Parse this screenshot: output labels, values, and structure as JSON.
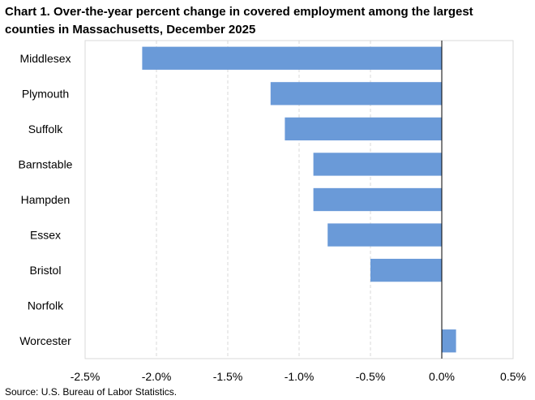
{
  "chart_data": {
    "type": "bar",
    "orientation": "horizontal",
    "title": "Chart 1. Over-the-year percent change in covered employment among the largest counties in Massachusetts, December 2025",
    "categories": [
      "Middlesex",
      "Plymouth",
      "Suffolk",
      "Barnstable",
      "Hampden",
      "Essex",
      "Bristol",
      "Norfolk",
      "Worcester"
    ],
    "values": [
      -2.1,
      -1.2,
      -1.1,
      -0.9,
      -0.9,
      -0.8,
      -0.5,
      0.0,
      0.1
    ],
    "xlim": [
      -2.5,
      0.5
    ],
    "xticks": [
      -2.5,
      -2.0,
      -1.5,
      -1.0,
      -0.5,
      0.0,
      0.5
    ],
    "xtick_labels": [
      "-2.5%",
      "-2.0%",
      "-1.5%",
      "-1.0%",
      "-0.5%",
      "0.0%",
      "0.5%"
    ],
    "grid": "vertical dashed",
    "bar_color": "#6a9ad8",
    "source": "Source: U.S. Bureau of Labor Statistics."
  }
}
